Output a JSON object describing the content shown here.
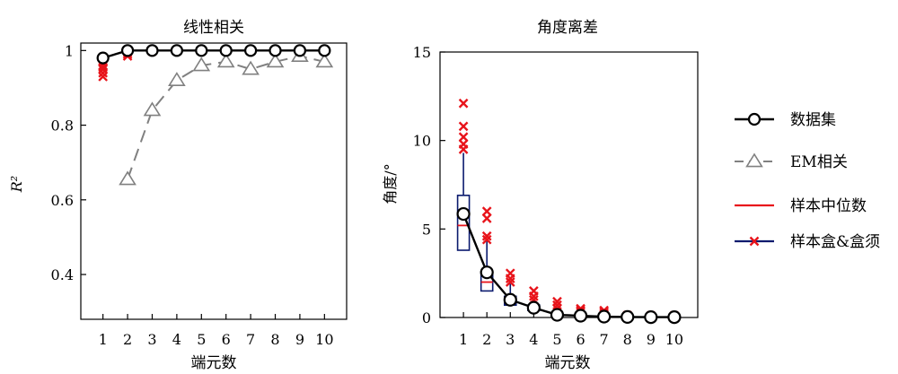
{
  "chart_data": [
    {
      "type": "line",
      "title": "线性相关",
      "xlabel": "端元数",
      "ylabel": "R²",
      "x": [
        1,
        2,
        3,
        4,
        5,
        6,
        7,
        8,
        9,
        10
      ],
      "x_tick_labels": [
        "1",
        "2",
        "3",
        "4",
        "5",
        "6",
        "7",
        "8",
        "9",
        "10"
      ],
      "xlim": [
        0.1,
        10.9
      ],
      "ylim": [
        0.28,
        1.02
      ],
      "y_ticks": [
        0.4,
        0.6,
        0.8,
        1
      ],
      "y_tick_labels": [
        "0.4",
        "0.6",
        "0.8",
        "1"
      ],
      "grid": false,
      "series": [
        {
          "name": "数据集",
          "values": [
            0.98,
            1.0,
            1.0,
            1.0,
            1.0,
            1.0,
            1.0,
            1.0,
            1.0,
            1.0
          ]
        },
        {
          "name": "EM相关",
          "values": [
            null,
            0.655,
            0.84,
            0.92,
            0.96,
            0.97,
            0.95,
            0.97,
            0.985,
            0.97
          ]
        }
      ],
      "outliers": [
        {
          "x": 1,
          "values": [
            0.93,
            0.94,
            0.95,
            0.955,
            0.96,
            0.97
          ]
        },
        {
          "x": 2,
          "values": [
            0.985,
            0.99,
            0.995
          ]
        },
        {
          "x": 3,
          "values": [
            0.998,
            1.0
          ]
        },
        {
          "x": 4,
          "values": [
            1.0
          ]
        },
        {
          "x": 5,
          "values": [
            1.0
          ]
        },
        {
          "x": 6,
          "values": [
            1.0
          ]
        },
        {
          "x": 7,
          "values": [
            1.0
          ]
        },
        {
          "x": 8,
          "values": [
            1.0
          ]
        },
        {
          "x": 9,
          "values": [
            1.0
          ]
        },
        {
          "x": 10,
          "values": [
            1.0
          ]
        }
      ]
    },
    {
      "type": "line",
      "title": "角度离差",
      "xlabel": "端元数",
      "ylabel": "角度/°",
      "x": [
        1,
        2,
        3,
        4,
        5,
        6,
        7,
        8,
        9,
        10
      ],
      "x_tick_labels": [
        "1",
        "2",
        "3",
        "4",
        "5",
        "6",
        "7",
        "8",
        "9",
        "10"
      ],
      "xlim": [
        0,
        11
      ],
      "ylim": [
        0,
        15
      ],
      "y_ticks": [
        0,
        5,
        10,
        15
      ],
      "y_tick_labels": [
        "0",
        "5",
        "10",
        "15"
      ],
      "grid": false,
      "series": [
        {
          "name": "数据集",
          "values": [
            5.85,
            2.55,
            1.0,
            0.55,
            0.15,
            0.1,
            0.05,
            0.03,
            0.02,
            0.02
          ]
        }
      ],
      "boxes": [
        {
          "x": 1,
          "q1": 3.8,
          "median": 5.2,
          "q3": 6.9,
          "whisker_low": 3.8,
          "whisker_high": 9.3
        },
        {
          "x": 2,
          "q1": 1.5,
          "median": 2.0,
          "q3": 2.6,
          "whisker_low": 1.5,
          "whisker_high": 4.3
        },
        {
          "x": 3,
          "q1": 0.7,
          "median": 0.9,
          "q3": 1.2,
          "whisker_low": 0.7,
          "whisker_high": 1.9
        },
        {
          "x": 4,
          "q1": 0.4,
          "median": 0.5,
          "q3": 0.7,
          "whisker_low": 0.4,
          "whisker_high": 1.0
        },
        {
          "x": 5,
          "q1": 0.1,
          "median": 0.15,
          "q3": 0.2,
          "whisker_low": 0.05,
          "whisker_high": 0.5
        },
        {
          "x": 6,
          "q1": 0.05,
          "median": 0.1,
          "q3": 0.15,
          "whisker_low": 0.03,
          "whisker_high": 0.3
        },
        {
          "x": 7,
          "q1": 0.03,
          "median": 0.05,
          "q3": 0.08,
          "whisker_low": 0.02,
          "whisker_high": 0.2
        },
        {
          "x": 8,
          "q1": 0.02,
          "median": 0.03,
          "q3": 0.05,
          "whisker_low": 0.01,
          "whisker_high": 0.1
        },
        {
          "x": 9,
          "q1": 0.01,
          "median": 0.02,
          "q3": 0.04,
          "whisker_low": 0.01,
          "whisker_high": 0.08
        },
        {
          "x": 10,
          "q1": 0.01,
          "median": 0.02,
          "q3": 0.04,
          "whisker_low": 0.01,
          "whisker_high": 0.08
        }
      ],
      "outliers": [
        {
          "x": 1,
          "values": [
            9.5,
            9.8,
            10.2,
            10.8,
            12.1
          ]
        },
        {
          "x": 2,
          "values": [
            4.4,
            4.6,
            5.6,
            6.0
          ]
        },
        {
          "x": 3,
          "values": [
            2.0,
            2.2,
            2.5
          ]
        },
        {
          "x": 4,
          "values": [
            1.0,
            1.2,
            1.5
          ]
        },
        {
          "x": 5,
          "values": [
            0.5,
            0.7,
            0.9
          ]
        },
        {
          "x": 6,
          "values": [
            0.3,
            0.4,
            0.5
          ]
        },
        {
          "x": 7,
          "values": [
            0.2,
            0.3,
            0.4
          ]
        },
        {
          "x": 8,
          "values": [
            0.1,
            0.12
          ]
        },
        {
          "x": 9,
          "values": [
            0.08,
            0.1
          ]
        },
        {
          "x": 10,
          "values": [
            0.08,
            0.1
          ]
        }
      ]
    }
  ],
  "legend": {
    "placement": "right",
    "items": [
      {
        "label": "数据集",
        "kind": "line-circle",
        "color": "#000000"
      },
      {
        "label": "EM相关",
        "kind": "dash-triangle",
        "color": "#808080"
      },
      {
        "label": "样本中位数",
        "kind": "line",
        "color": "#e8141b"
      },
      {
        "label": "样本盒&盒须",
        "kind": "line-cross",
        "color": "#0a1a6e",
        "marker_color": "#e8141b"
      }
    ]
  },
  "colors": {
    "dataset": "#000000",
    "em": "#808080",
    "median": "#e8141b",
    "box": "#0a1a6e",
    "outlier": "#e8141b"
  }
}
